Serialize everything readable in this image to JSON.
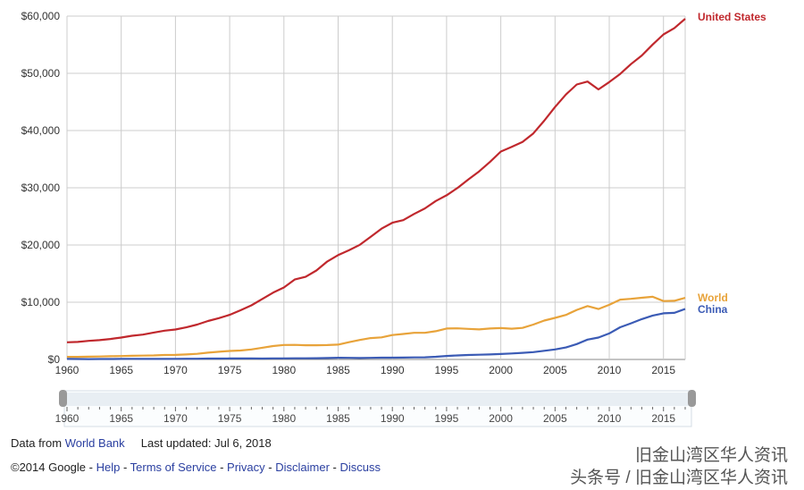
{
  "chart_data": {
    "type": "line",
    "title": "",
    "xlabel": "",
    "ylabel": "",
    "xlim": [
      1960,
      2017
    ],
    "ylim": [
      0,
      60000
    ],
    "yticks": [
      "$0",
      "$10,000",
      "$20,000",
      "$30,000",
      "$40,000",
      "$50,000",
      "$60,000"
    ],
    "xticks": [
      "1960",
      "1965",
      "1970",
      "1975",
      "1980",
      "1985",
      "1990",
      "1995",
      "2000",
      "2005",
      "2010",
      "2015"
    ],
    "grid": true,
    "legend": "end-of-line labels, right",
    "x": [
      1960,
      1961,
      1962,
      1963,
      1964,
      1965,
      1966,
      1967,
      1968,
      1969,
      1970,
      1971,
      1972,
      1973,
      1974,
      1975,
      1976,
      1977,
      1978,
      1979,
      1980,
      1981,
      1982,
      1983,
      1984,
      1985,
      1986,
      1987,
      1988,
      1989,
      1990,
      1991,
      1992,
      1993,
      1994,
      1995,
      1996,
      1997,
      1998,
      1999,
      2000,
      2001,
      2002,
      2003,
      2004,
      2005,
      2006,
      2007,
      2008,
      2009,
      2010,
      2011,
      2012,
      2013,
      2014,
      2015,
      2016,
      2017
    ],
    "series": [
      {
        "name": "United States",
        "color": "#c0282d",
        "values": [
          3007,
          3067,
          3244,
          3375,
          3574,
          3828,
          4146,
          4336,
          4696,
          5032,
          5234,
          5609,
          6094,
          6726,
          7226,
          7801,
          8592,
          9453,
          10565,
          11674,
          12575,
          13976,
          14434,
          15544,
          17121,
          18237,
          19071,
          20039,
          21417,
          22857,
          23889,
          24342,
          25419,
          26387,
          27695,
          28691,
          29968,
          31459,
          32854,
          34516,
          36335,
          37133,
          38023,
          39497,
          41712,
          44115,
          46299,
          48050,
          48570,
          47195,
          48467,
          49883,
          51603,
          53107,
          55033,
          56804,
          57904,
          59532
        ]
      },
      {
        "name": "World",
        "color": "#e8a33a",
        "values": [
          450,
          460,
          490,
          520,
          560,
          600,
          640,
          670,
          710,
          780,
          800,
          870,
          980,
          1180,
          1350,
          1480,
          1570,
          1750,
          2040,
          2350,
          2530,
          2550,
          2480,
          2480,
          2510,
          2590,
          3010,
          3400,
          3740,
          3860,
          4270,
          4450,
          4660,
          4650,
          4940,
          5400,
          5440,
          5350,
          5250,
          5400,
          5490,
          5370,
          5520,
          6100,
          6800,
          7260,
          7780,
          8650,
          9330,
          8820,
          9540,
          10460,
          10600,
          10780,
          10950,
          10200,
          10250,
          10770
        ]
      },
      {
        "name": "China",
        "color": "#3b5bb5",
        "values": [
          90,
          76,
          70,
          74,
          85,
          98,
          104,
          97,
          91,
          100,
          113,
          119,
          132,
          157,
          160,
          178,
          165,
          185,
          156,
          183,
          195,
          197,
          203,
          225,
          251,
          294,
          282,
          251,
          283,
          310,
          318,
          333,
          366,
          377,
          473,
          610,
          709,
          782,
          829,
          873,
          959,
          1053,
          1149,
          1289,
          1509,
          1753,
          2099,
          2694,
          3468,
          3832,
          4550,
          5618,
          6317,
          7051,
          7679,
          8067,
          8148,
          8827
        ]
      }
    ],
    "timeline": {
      "labels": [
        "1960",
        "1965",
        "1970",
        "1975",
        "1980",
        "1985",
        "1990",
        "1995",
        "2000",
        "2005",
        "2010",
        "2015"
      ],
      "range": [
        1960,
        2017
      ]
    }
  },
  "footer": {
    "data_from": "Data from",
    "source_link": "World Bank",
    "last_updated": "Last updated: Jul 6, 2018",
    "copyright": "©2014 Google",
    "sep": " - ",
    "links": [
      "Help",
      "Terms of Service",
      "Privacy",
      "Disclaimer",
      "Discuss"
    ]
  },
  "watermark": {
    "line1": "旧金山湾区华人资讯",
    "line2": "头条号 / 旧金山湾区华人资讯"
  }
}
